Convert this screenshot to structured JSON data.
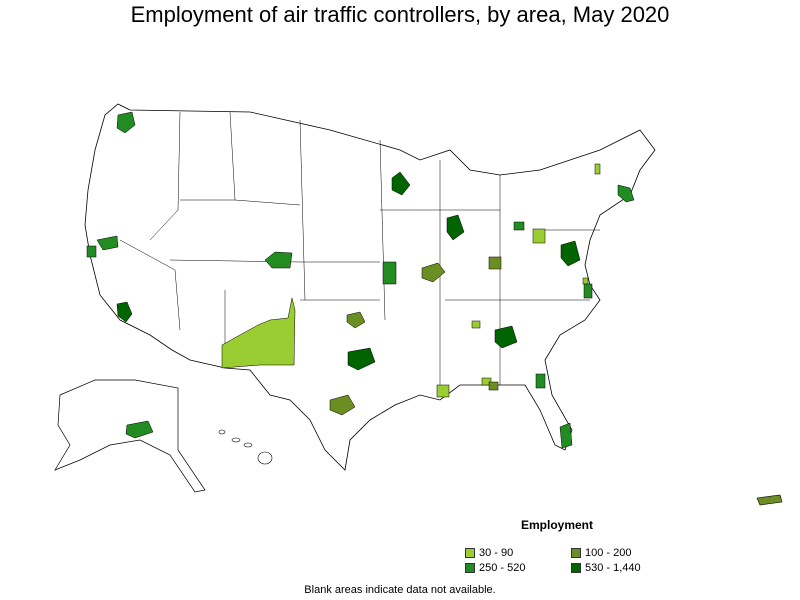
{
  "title": "Employment of air traffic controllers, by area, May 2020",
  "legend": {
    "title": "Employment",
    "items": [
      {
        "label": "30 - 90",
        "color": "#9acd32"
      },
      {
        "label": "100 - 200",
        "color": "#6b8e23"
      },
      {
        "label": "250 - 520",
        "color": "#228b22"
      },
      {
        "label": "530 - 1,440",
        "color": "#006400"
      }
    ]
  },
  "footnote": "Blank areas indicate data not available.",
  "colors": {
    "border": "#000000",
    "background": "#ffffff"
  }
}
